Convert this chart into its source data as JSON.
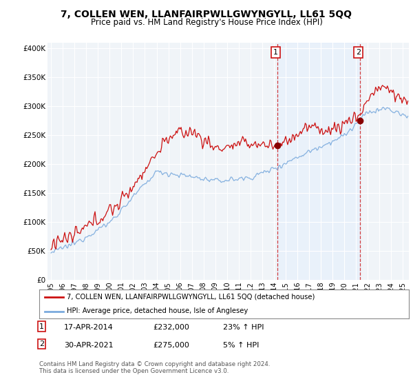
{
  "title": "7, COLLEN WEN, LLANFAIRPWLLGWYNGYLL, LL61 5QQ",
  "subtitle": "Price paid vs. HM Land Registry's House Price Index (HPI)",
  "title_fontsize": 10,
  "subtitle_fontsize": 8.5,
  "ylabel_ticks": [
    "£0",
    "£50K",
    "£100K",
    "£150K",
    "£200K",
    "£250K",
    "£300K",
    "£350K",
    "£400K"
  ],
  "ytick_values": [
    0,
    50000,
    100000,
    150000,
    200000,
    250000,
    300000,
    350000,
    400000
  ],
  "ylim": [
    0,
    410000
  ],
  "xlim_start": 1994.7,
  "xlim_end": 2025.5,
  "line1_color": "#cc1111",
  "line2_color": "#7aaadd",
  "shade_color": "#ddeeff",
  "background_color": "#f0f4f8",
  "grid_color": "#ffffff",
  "sale1_year": 2014.29,
  "sale1_price": 232000,
  "sale2_year": 2021.33,
  "sale2_price": 275000,
  "legend_line1": "7, COLLEN WEN, LLANFAIRPWLLGWYNGYLL, LL61 5QQ (detached house)",
  "legend_line2": "HPI: Average price, detached house, Isle of Anglesey",
  "annotation1_date": "17-APR-2014",
  "annotation1_price": "£232,000",
  "annotation1_hpi": "23% ↑ HPI",
  "annotation2_date": "30-APR-2021",
  "annotation2_price": "£275,000",
  "annotation2_hpi": "5% ↑ HPI",
  "footer": "Contains HM Land Registry data © Crown copyright and database right 2024.\nThis data is licensed under the Open Government Licence v3.0.",
  "xtick_years": [
    1995,
    1996,
    1997,
    1998,
    1999,
    2000,
    2001,
    2002,
    2003,
    2004,
    2005,
    2006,
    2007,
    2008,
    2009,
    2010,
    2011,
    2012,
    2013,
    2014,
    2015,
    2016,
    2017,
    2018,
    2019,
    2020,
    2021,
    2022,
    2023,
    2024,
    2025
  ]
}
